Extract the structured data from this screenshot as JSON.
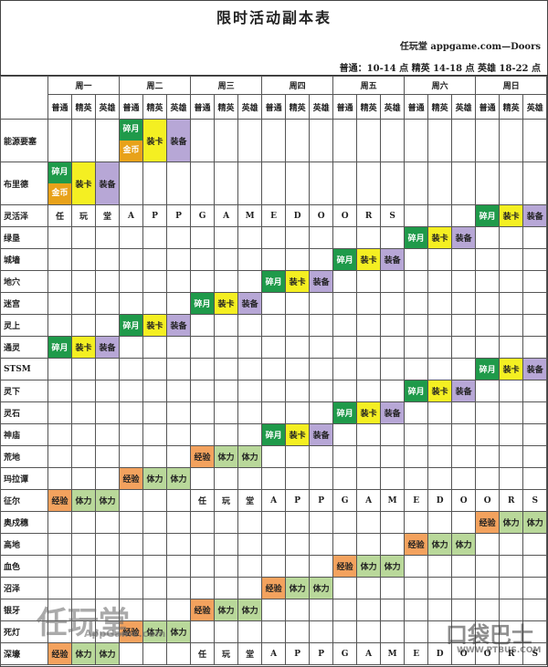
{
  "title": "限时活动副本表",
  "credit": "任玩堂 appgame.com—Doors",
  "legend": "普通：10-14 点   精英 14-18 点   英雄 18-22 点",
  "days": [
    "周一",
    "周二",
    "周三",
    "周四",
    "周五",
    "周六",
    "周日"
  ],
  "tiers": [
    "普通",
    "精英",
    "英雄"
  ],
  "rows": [
    {
      "name": "能源要塞",
      "cells": [
        "",
        "",
        "",
        "碎月|金币",
        "装卡",
        "装备",
        "",
        "",
        "",
        "",
        "",
        "",
        "",
        "",
        "",
        "",
        "",
        "",
        "",
        "",
        ""
      ]
    },
    {
      "name": "布里德",
      "cells": [
        "碎月|金币",
        "装卡",
        "装备",
        "",
        "",
        "",
        "",
        "",
        "",
        "",
        "",
        "",
        "",
        "",
        "",
        "",
        "",
        "",
        "",
        "",
        ""
      ]
    },
    {
      "name": "灵活泽",
      "cells": [
        "任",
        "玩",
        "堂",
        "A",
        "P",
        "P",
        "G",
        "A",
        "M",
        "E",
        "D",
        "O",
        "O",
        "R",
        "S",
        "",
        "",
        "",
        "碎月",
        "装卡",
        "装备"
      ]
    },
    {
      "name": "绿垦",
      "cells": [
        "",
        "",
        "",
        "",
        "",
        "",
        "",
        "",
        "",
        "",
        "",
        "",
        "",
        "",
        "",
        "碎月",
        "装卡",
        "装备",
        "",
        "",
        ""
      ]
    },
    {
      "name": "城墙",
      "cells": [
        "",
        "",
        "",
        "",
        "",
        "",
        "",
        "",
        "",
        "",
        "",
        "",
        "碎月",
        "装卡",
        "装备",
        "",
        "",
        "",
        "",
        "",
        ""
      ]
    },
    {
      "name": "地穴",
      "cells": [
        "",
        "",
        "",
        "",
        "",
        "",
        "",
        "",
        "",
        "碎月",
        "装卡",
        "装备",
        "",
        "",
        "",
        "",
        "",
        "",
        "",
        "",
        ""
      ]
    },
    {
      "name": "迷宫",
      "cells": [
        "",
        "",
        "",
        "",
        "",
        "",
        "碎月",
        "装卡",
        "装备",
        "",
        "",
        "",
        "",
        "",
        "",
        "",
        "",
        "",
        "",
        "",
        ""
      ]
    },
    {
      "name": "灵上",
      "cells": [
        "",
        "",
        "",
        "碎月",
        "装卡",
        "装备",
        "",
        "",
        "",
        "",
        "",
        "",
        "",
        "",
        "",
        "",
        "",
        "",
        "",
        "",
        ""
      ]
    },
    {
      "name": "通灵",
      "cells": [
        "碎月",
        "装卡",
        "装备",
        "",
        "",
        "",
        "",
        "",
        "",
        "",
        "",
        "",
        "",
        "",
        "",
        "",
        "",
        "",
        "",
        "",
        ""
      ]
    },
    {
      "name": "STSM",
      "cells": [
        "",
        "",
        "",
        "",
        "",
        "",
        "",
        "",
        "",
        "",
        "",
        "",
        "",
        "",
        "",
        "",
        "",
        "",
        "碎月",
        "装卡",
        "装备"
      ]
    },
    {
      "name": "灵下",
      "cells": [
        "",
        "",
        "",
        "",
        "",
        "",
        "",
        "",
        "",
        "",
        "",
        "",
        "",
        "",
        "",
        "碎月",
        "装卡",
        "装备",
        "",
        "",
        ""
      ]
    },
    {
      "name": "灵石",
      "cells": [
        "",
        "",
        "",
        "",
        "",
        "",
        "",
        "",
        "",
        "",
        "",
        "",
        "碎月",
        "装卡",
        "装备",
        "",
        "",
        "",
        "",
        "",
        ""
      ]
    },
    {
      "name": "神庙",
      "cells": [
        "",
        "",
        "",
        "",
        "",
        "",
        "",
        "",
        "",
        "碎月",
        "装卡",
        "装备",
        "",
        "",
        "",
        "",
        "",
        "",
        "",
        "",
        ""
      ]
    },
    {
      "name": "荒地",
      "cells": [
        "",
        "",
        "",
        "",
        "",
        "",
        "经验",
        "体力",
        "体力",
        "",
        "",
        "",
        "",
        "",
        "",
        "",
        "",
        "",
        "",
        "",
        ""
      ]
    },
    {
      "name": "玛拉谭",
      "cells": [
        "",
        "",
        "",
        "经验",
        "体力",
        "体力",
        "",
        "",
        "",
        "",
        "",
        "",
        "",
        "",
        "",
        "",
        "",
        "",
        "",
        "",
        ""
      ]
    },
    {
      "name": "征尔",
      "cells": [
        "经验",
        "体力",
        "体力",
        "",
        "",
        "",
        "任",
        "玩",
        "堂",
        "A",
        "P",
        "P",
        "G",
        "A",
        "M",
        "E",
        "D",
        "O",
        "O",
        "R",
        "S"
      ]
    },
    {
      "name": "奥戍穗",
      "cells": [
        "",
        "",
        "",
        "",
        "",
        "",
        "",
        "",
        "",
        "",
        "",
        "",
        "",
        "",
        "",
        "",
        "",
        "",
        "经验",
        "体力",
        "体力"
      ]
    },
    {
      "name": "高地",
      "cells": [
        "",
        "",
        "",
        "",
        "",
        "",
        "",
        "",
        "",
        "",
        "",
        "",
        "",
        "",
        "",
        "经验",
        "体力",
        "体力",
        "",
        "",
        ""
      ]
    },
    {
      "name": "血色",
      "cells": [
        "",
        "",
        "",
        "",
        "",
        "",
        "",
        "",
        "",
        "",
        "",
        "",
        "经验",
        "体力",
        "体力",
        "",
        "",
        "",
        "",
        "",
        ""
      ]
    },
    {
      "name": "沼泽",
      "cells": [
        "",
        "",
        "",
        "",
        "",
        "",
        "",
        "",
        "",
        "经验",
        "体力",
        "体力",
        "",
        "",
        "",
        "",
        "",
        "",
        "",
        "",
        ""
      ]
    },
    {
      "name": "银牙",
      "cells": [
        "",
        "",
        "",
        "",
        "",
        "",
        "经验",
        "体力",
        "体力",
        "",
        "",
        "",
        "",
        "",
        "",
        "",
        "",
        "",
        "",
        "",
        ""
      ]
    },
    {
      "name": "死灯",
      "cells": [
        "",
        "",
        "",
        "经验",
        "体力",
        "体力",
        "",
        "",
        "",
        "",
        "",
        "",
        "",
        "",
        "",
        "",
        "",
        "",
        "",
        "",
        ""
      ]
    },
    {
      "name": "深壕",
      "cells": [
        "经验",
        "体力",
        "体力",
        "",
        "",
        "",
        "任",
        "玩",
        "堂",
        "A",
        "P",
        "P",
        "G",
        "A",
        "M",
        "E",
        "D",
        "O",
        "O",
        "R",
        "S"
      ]
    }
  ],
  "colors": {
    "green": "#1f9a4a",
    "yellow": "#f4ef22",
    "purple": "#b7a7d6",
    "orange": "#f3a25e",
    "light_green": "#b9d89a"
  },
  "watermark_left": "任玩堂",
  "watermark_left_sub": "AppGame.com",
  "watermark_right": "口袋巴士",
  "watermark_right_sub": "WWW.PTBUS.COM"
}
